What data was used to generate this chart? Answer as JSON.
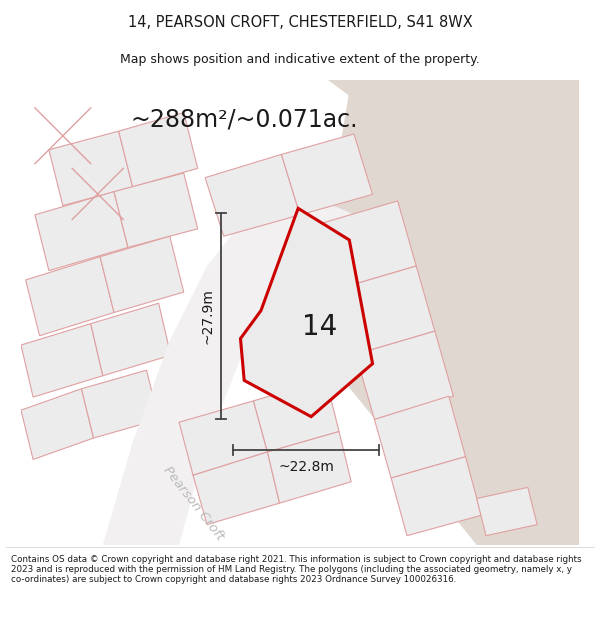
{
  "title_line1": "14, PEARSON CROFT, CHESTERFIELD, S41 8WX",
  "title_line2": "Map shows position and indicative extent of the property.",
  "area_text": "~288m²/~0.071ac.",
  "label_number": "14",
  "dim_width": "~22.8m",
  "dim_height": "~27.9m",
  "street_label": "Pearson Croft",
  "footer_text": "Contains OS data © Crown copyright and database right 2021. This information is subject to Crown copyright and database rights 2023 and is reproduced with the permission of HM Land Registry. The polygons (including the associated geometry, namely x, y co-ordinates) are subject to Crown copyright and database rights 2023 Ordnance Survey 100026316.",
  "bg_map_color": "#f2f0f0",
  "plot_fill_color": "#ebebeb",
  "plot_border_color": "#cc0000",
  "dim_line_color": "#444444",
  "text_color": "#1a1a1a",
  "tan_area_color": "#e0d8d0",
  "light_plot_edge": "#e0a0a0",
  "light_plot_fill": "#ececec",
  "title_bg": "#ffffff",
  "footer_bg": "#ffffff",
  "street_color": "#bbbbbb"
}
